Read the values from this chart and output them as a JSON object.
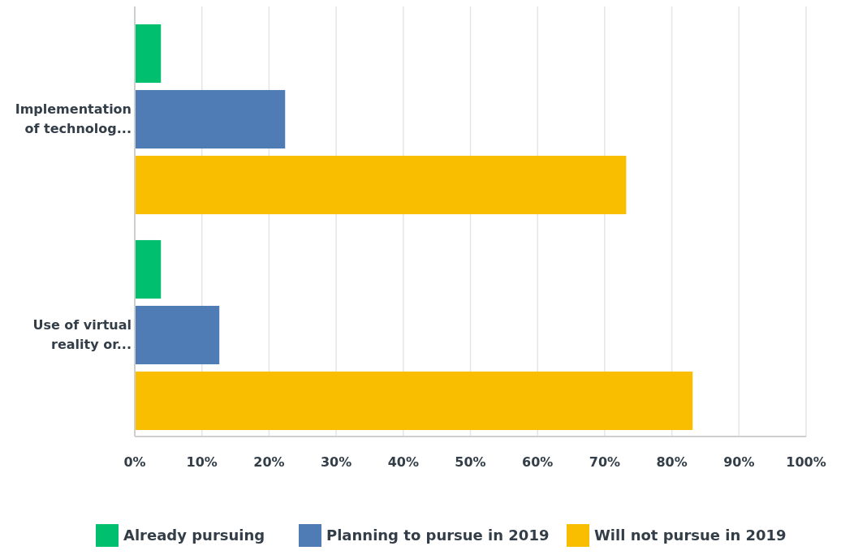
{
  "chart_data": {
    "type": "bar",
    "orientation": "horizontal",
    "categories": [
      "Implementation of technolog...",
      "Use of virtual reality or..."
    ],
    "series": [
      {
        "name": "Already pursuing",
        "color": "#00bf6f",
        "values": [
          3.9,
          3.9
        ]
      },
      {
        "name": "Planning to pursue in 2019",
        "color": "#507cb6",
        "values": [
          22.4,
          12.6
        ]
      },
      {
        "name": "Will not pursue in 2019",
        "color": "#f9be00",
        "values": [
          73.2,
          83.1
        ]
      }
    ],
    "xlim": [
      0,
      100
    ],
    "xticks": [
      {
        "value": 0,
        "label": "0%"
      },
      {
        "value": 10,
        "label": "10%"
      },
      {
        "value": 20,
        "label": "20%"
      },
      {
        "value": 30,
        "label": "30%"
      },
      {
        "value": 40,
        "label": "40%"
      },
      {
        "value": 50,
        "label": "50%"
      },
      {
        "value": 60,
        "label": "60%"
      },
      {
        "value": 70,
        "label": "70%"
      },
      {
        "value": 80,
        "label": "80%"
      },
      {
        "value": 90,
        "label": "90%"
      },
      {
        "value": 100,
        "label": "100%"
      }
    ],
    "grid": "x",
    "legend": "bottom"
  }
}
